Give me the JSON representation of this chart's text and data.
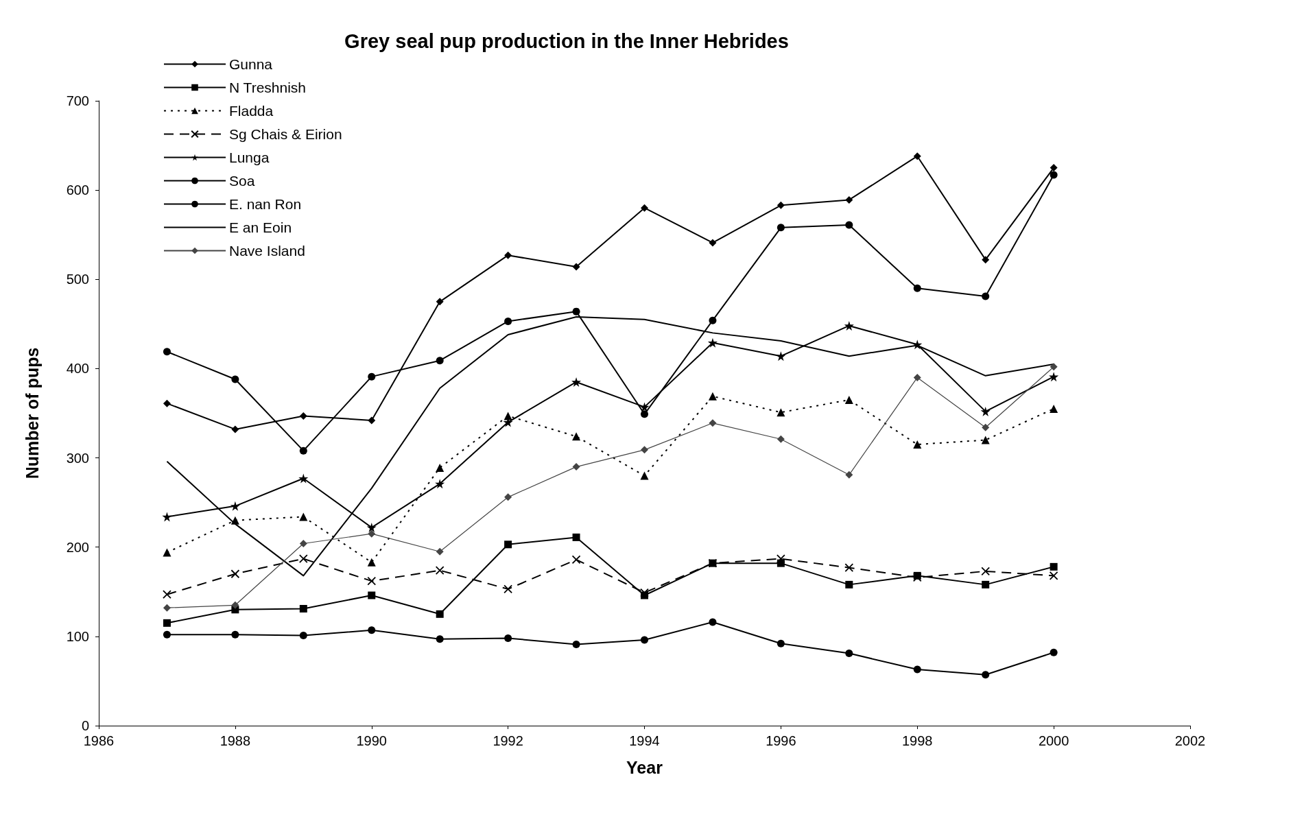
{
  "chart_data": {
    "type": "line",
    "title": "Grey seal pup production in the Inner Hebrides",
    "xlabel": "Year",
    "ylabel": "Number of pups",
    "x": [
      1987,
      1988,
      1989,
      1990,
      1991,
      1992,
      1993,
      1994,
      1995,
      1996,
      1997,
      1998,
      1999,
      2000
    ],
    "xlim": [
      1986,
      2002
    ],
    "xticks": [
      1986,
      1988,
      1990,
      1992,
      1994,
      1996,
      1998,
      2000,
      2002
    ],
    "ylim": [
      0,
      700
    ],
    "yticks": [
      0,
      100,
      200,
      300,
      400,
      500,
      600,
      700
    ],
    "grid": false,
    "legend": "top left",
    "series": [
      {
        "name": "Gunna",
        "color": "#000000",
        "marker": "diamond",
        "line_style": "solid",
        "values": [
          361,
          332,
          347,
          342,
          475,
          527,
          514,
          580,
          541,
          583,
          589,
          638,
          522,
          625
        ]
      },
      {
        "name": "N Treshnish",
        "color": "#000000",
        "marker": "square",
        "line_style": "solid",
        "values": [
          115,
          130,
          131,
          146,
          125,
          203,
          211,
          146,
          182,
          182,
          158,
          168,
          158,
          178
        ]
      },
      {
        "name": "Fladda",
        "color": "#000000",
        "marker": "triangle",
        "line_style": "dotted",
        "values": [
          194,
          230,
          234,
          183,
          289,
          347,
          324,
          280,
          369,
          351,
          365,
          315,
          320,
          355
        ]
      },
      {
        "name": "Sg Chais & Eirion",
        "color": "#000000",
        "marker": "cross",
        "line_style": "dashed",
        "values": [
          147,
          170,
          187,
          162,
          174,
          153,
          186,
          149,
          182,
          187,
          177,
          166,
          173,
          168
        ]
      },
      {
        "name": "Lunga",
        "color": "#000000",
        "marker": "star",
        "line_style": "solid",
        "values": [
          234,
          246,
          277,
          222,
          271,
          340,
          385,
          357,
          429,
          414,
          448,
          427,
          352,
          391
        ]
      },
      {
        "name": "Soa",
        "color": "#000000",
        "marker": "circle",
        "line_style": "solid",
        "values": [
          102,
          102,
          101,
          107,
          97,
          98,
          91,
          96,
          116,
          92,
          81,
          63,
          57,
          82
        ]
      },
      {
        "name": "E. nan Ron",
        "color": "#000000",
        "marker": "circle",
        "line_style": "solid",
        "values": [
          419,
          388,
          308,
          391,
          409,
          453,
          464,
          349,
          454,
          558,
          561,
          490,
          481,
          617
        ]
      },
      {
        "name": "E an Eoin",
        "color": "#000000",
        "marker": "none",
        "line_style": "solid",
        "values": [
          296,
          226,
          168,
          266,
          378,
          438,
          458,
          455,
          440,
          431,
          414,
          426,
          392,
          405
        ]
      },
      {
        "name": "Nave Island",
        "color": "#444444",
        "marker": "diamond",
        "line_style": "solid",
        "values": [
          132,
          135,
          204,
          215,
          195,
          256,
          290,
          309,
          339,
          321,
          281,
          390,
          334,
          402
        ]
      }
    ]
  }
}
